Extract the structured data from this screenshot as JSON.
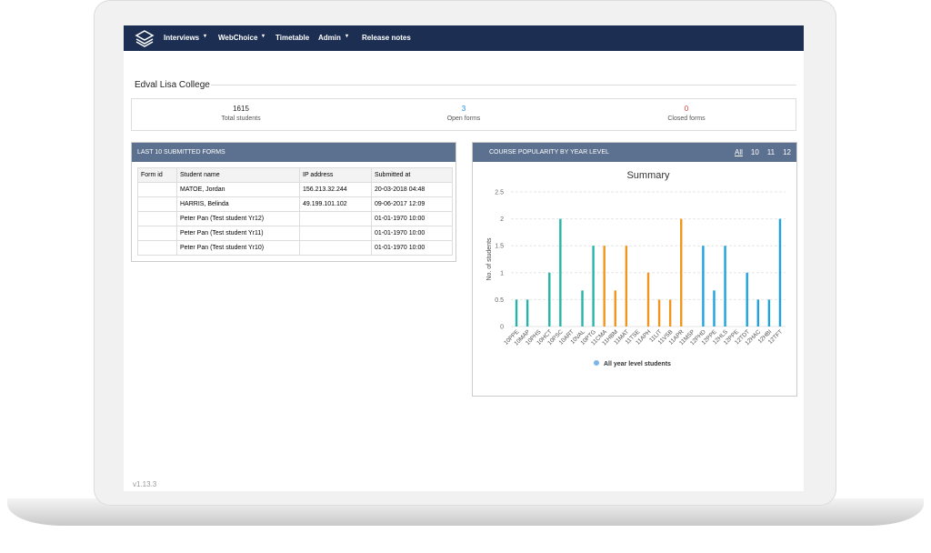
{
  "nav": {
    "items": [
      "Interviews",
      "WebChoice",
      "Timetable",
      "Admin",
      "Release notes"
    ]
  },
  "header": {
    "title": "Edval Lisa College"
  },
  "stats": [
    {
      "value": "1615",
      "label": "Total students"
    },
    {
      "value": "3",
      "label": "Open forms"
    },
    {
      "value": "0",
      "label": "Closed forms"
    }
  ],
  "forms_panel": {
    "title": "LAST 10 SUBMITTED FORMS",
    "table": {
      "columns": [
        "Form id",
        "Student name",
        "IP address",
        "Submitted at"
      ],
      "rows": [
        [
          null,
          "MATOE, Jordan",
          "156.213.32.244",
          "20-03-2018 04:48"
        ],
        [
          null,
          "HARRIS, Belinda",
          "49.199.101.102",
          "09-06-2017 12:09"
        ],
        [
          null,
          "Peter Pan (Test student Yr12)",
          null,
          "01-01-1970 10:00"
        ],
        [
          null,
          "Peter Pan (Test student Yr11)",
          null,
          "01-01-1970 10:00"
        ],
        [
          null,
          "Peter Pan (Test student Yr10)",
          null,
          "01-01-1970 10:00"
        ]
      ]
    }
  },
  "footer": {
    "version": "v1.13.3"
  },
  "chart_data": {
    "type": "bar",
    "panel_title": "COURSE POPULARITY BY YEAR LEVEL",
    "filters": [
      "All",
      "10",
      "11",
      "12"
    ],
    "title": "Summary",
    "y_label": "No. of students",
    "categories": [
      "10PPE",
      "10MAP",
      "10PHS",
      "10HCT",
      "10PSC",
      "10ART",
      "10VAL",
      "10PTG",
      "11CMA",
      "11HBM",
      "11MAT",
      "11TSE",
      "11APH",
      "11LIT",
      "11VSB",
      "11APR",
      "11MSP",
      "12PHD",
      "12PPE",
      "12HLS",
      "12PPE",
      "12TDT",
      "12HAC",
      "12HBI",
      "12TFT"
    ],
    "series": [
      {
        "name": "All year level students",
        "color": "#7cb5ec",
        "values": [
          0.5,
          0.5,
          0,
          1,
          2,
          0,
          0.67,
          1.5,
          1.5,
          0.67,
          1.5,
          0,
          1,
          0.5,
          0.5,
          2,
          0,
          1.5,
          0.67,
          1.5,
          0,
          1,
          0.5,
          0.5,
          2
        ],
        "colors": [
          "#27b3a6",
          "#27b3a6",
          "#27b3a6",
          "#27b3a6",
          "#27b3a6",
          "#27b3a6",
          "#27b3a6",
          "#27b3a6",
          "#f0961e",
          "#f0961e",
          "#f0961e",
          "#f0961e",
          "#f0961e",
          "#f0961e",
          "#f0961e",
          "#f0961e",
          "#1ea3e0",
          "#1ea3e0",
          "#1ea3e0",
          "#1ea3e0",
          "#1ea3e0",
          "#1ea3e0",
          "#1ea3e0",
          "#1ea3e0",
          "#1ea3e0"
        ]
      }
    ],
    "ylim": [
      0,
      2.5
    ],
    "yticks": [
      0,
      0.5,
      1,
      1.5,
      2,
      2.5
    ],
    "grid": true
  }
}
